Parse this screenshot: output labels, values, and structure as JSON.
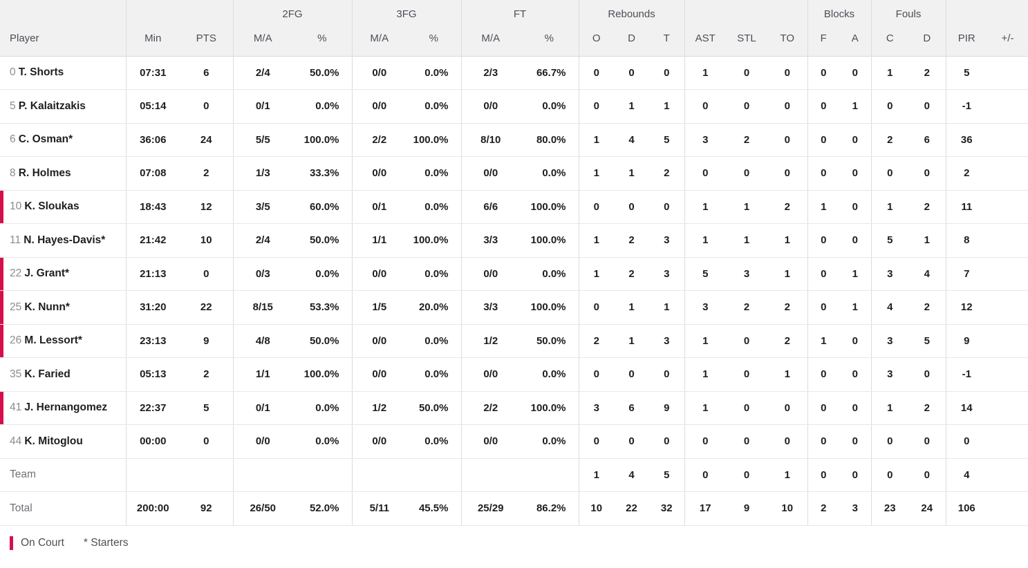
{
  "colors": {
    "on_court": "#d50f4b",
    "header_bg": "#f1f1f2"
  },
  "table": {
    "groups": {
      "fg2": "2FG",
      "fg3": "3FG",
      "ft": "FT",
      "rebounds": "Rebounds",
      "blocks": "Blocks",
      "fouls": "Fouls"
    },
    "columns": {
      "player": "Player",
      "min": "Min",
      "pts": "PTS",
      "ma": "M/A",
      "pct": "%",
      "reb_o": "O",
      "reb_d": "D",
      "reb_t": "T",
      "ast": "AST",
      "stl": "STL",
      "to": "TO",
      "blk_f": "F",
      "blk_a": "A",
      "foul_c": "C",
      "foul_d": "D",
      "pir": "PIR",
      "plus_minus": "+/-"
    },
    "rows": [
      {
        "type": "player",
        "num": "0",
        "name": "T. Shorts",
        "on_court": false,
        "min": "07:31",
        "pts": "6",
        "fg2_ma": "2/4",
        "fg2_pct": "50.0%",
        "fg3_ma": "0/0",
        "fg3_pct": "0.0%",
        "ft_ma": "2/3",
        "ft_pct": "66.7%",
        "reb_o": "0",
        "reb_d": "0",
        "reb_t": "0",
        "ast": "1",
        "stl": "0",
        "to": "0",
        "blk_f": "0",
        "blk_a": "0",
        "foul_c": "1",
        "foul_d": "2",
        "pir": "5",
        "plus_minus": ""
      },
      {
        "type": "player",
        "num": "5",
        "name": "P. Kalaitzakis",
        "on_court": false,
        "min": "05:14",
        "pts": "0",
        "fg2_ma": "0/1",
        "fg2_pct": "0.0%",
        "fg3_ma": "0/0",
        "fg3_pct": "0.0%",
        "ft_ma": "0/0",
        "ft_pct": "0.0%",
        "reb_o": "0",
        "reb_d": "1",
        "reb_t": "1",
        "ast": "0",
        "stl": "0",
        "to": "0",
        "blk_f": "0",
        "blk_a": "1",
        "foul_c": "0",
        "foul_d": "0",
        "pir": "-1",
        "plus_minus": ""
      },
      {
        "type": "player",
        "num": "6",
        "name": "C. Osman*",
        "on_court": false,
        "min": "36:06",
        "pts": "24",
        "fg2_ma": "5/5",
        "fg2_pct": "100.0%",
        "fg3_ma": "2/2",
        "fg3_pct": "100.0%",
        "ft_ma": "8/10",
        "ft_pct": "80.0%",
        "reb_o": "1",
        "reb_d": "4",
        "reb_t": "5",
        "ast": "3",
        "stl": "2",
        "to": "0",
        "blk_f": "0",
        "blk_a": "0",
        "foul_c": "2",
        "foul_d": "6",
        "pir": "36",
        "plus_minus": ""
      },
      {
        "type": "player",
        "num": "8",
        "name": "R. Holmes",
        "on_court": false,
        "min": "07:08",
        "pts": "2",
        "fg2_ma": "1/3",
        "fg2_pct": "33.3%",
        "fg3_ma": "0/0",
        "fg3_pct": "0.0%",
        "ft_ma": "0/0",
        "ft_pct": "0.0%",
        "reb_o": "1",
        "reb_d": "1",
        "reb_t": "2",
        "ast": "0",
        "stl": "0",
        "to": "0",
        "blk_f": "0",
        "blk_a": "0",
        "foul_c": "0",
        "foul_d": "0",
        "pir": "2",
        "plus_minus": ""
      },
      {
        "type": "player",
        "num": "10",
        "name": "K. Sloukas",
        "on_court": true,
        "min": "18:43",
        "pts": "12",
        "fg2_ma": "3/5",
        "fg2_pct": "60.0%",
        "fg3_ma": "0/1",
        "fg3_pct": "0.0%",
        "ft_ma": "6/6",
        "ft_pct": "100.0%",
        "reb_o": "0",
        "reb_d": "0",
        "reb_t": "0",
        "ast": "1",
        "stl": "1",
        "to": "2",
        "blk_f": "1",
        "blk_a": "0",
        "foul_c": "1",
        "foul_d": "2",
        "pir": "11",
        "plus_minus": ""
      },
      {
        "type": "player",
        "num": "11",
        "name": "N. Hayes-Davis*",
        "on_court": false,
        "min": "21:42",
        "pts": "10",
        "fg2_ma": "2/4",
        "fg2_pct": "50.0%",
        "fg3_ma": "1/1",
        "fg3_pct": "100.0%",
        "ft_ma": "3/3",
        "ft_pct": "100.0%",
        "reb_o": "1",
        "reb_d": "2",
        "reb_t": "3",
        "ast": "1",
        "stl": "1",
        "to": "1",
        "blk_f": "0",
        "blk_a": "0",
        "foul_c": "5",
        "foul_d": "1",
        "pir": "8",
        "plus_minus": ""
      },
      {
        "type": "player",
        "num": "22",
        "name": "J. Grant*",
        "on_court": true,
        "min": "21:13",
        "pts": "0",
        "fg2_ma": "0/3",
        "fg2_pct": "0.0%",
        "fg3_ma": "0/0",
        "fg3_pct": "0.0%",
        "ft_ma": "0/0",
        "ft_pct": "0.0%",
        "reb_o": "1",
        "reb_d": "2",
        "reb_t": "3",
        "ast": "5",
        "stl": "3",
        "to": "1",
        "blk_f": "0",
        "blk_a": "1",
        "foul_c": "3",
        "foul_d": "4",
        "pir": "7",
        "plus_minus": ""
      },
      {
        "type": "player",
        "num": "25",
        "name": "K. Nunn*",
        "on_court": true,
        "min": "31:20",
        "pts": "22",
        "fg2_ma": "8/15",
        "fg2_pct": "53.3%",
        "fg3_ma": "1/5",
        "fg3_pct": "20.0%",
        "ft_ma": "3/3",
        "ft_pct": "100.0%",
        "reb_o": "0",
        "reb_d": "1",
        "reb_t": "1",
        "ast": "3",
        "stl": "2",
        "to": "2",
        "blk_f": "0",
        "blk_a": "1",
        "foul_c": "4",
        "foul_d": "2",
        "pir": "12",
        "plus_minus": ""
      },
      {
        "type": "player",
        "num": "26",
        "name": "M. Lessort*",
        "on_court": true,
        "min": "23:13",
        "pts": "9",
        "fg2_ma": "4/8",
        "fg2_pct": "50.0%",
        "fg3_ma": "0/0",
        "fg3_pct": "0.0%",
        "ft_ma": "1/2",
        "ft_pct": "50.0%",
        "reb_o": "2",
        "reb_d": "1",
        "reb_t": "3",
        "ast": "1",
        "stl": "0",
        "to": "2",
        "blk_f": "1",
        "blk_a": "0",
        "foul_c": "3",
        "foul_d": "5",
        "pir": "9",
        "plus_minus": ""
      },
      {
        "type": "player",
        "num": "35",
        "name": "K. Faried",
        "on_court": false,
        "min": "05:13",
        "pts": "2",
        "fg2_ma": "1/1",
        "fg2_pct": "100.0%",
        "fg3_ma": "0/0",
        "fg3_pct": "0.0%",
        "ft_ma": "0/0",
        "ft_pct": "0.0%",
        "reb_o": "0",
        "reb_d": "0",
        "reb_t": "0",
        "ast": "1",
        "stl": "0",
        "to": "1",
        "blk_f": "0",
        "blk_a": "0",
        "foul_c": "3",
        "foul_d": "0",
        "pir": "-1",
        "plus_minus": ""
      },
      {
        "type": "player",
        "num": "41",
        "name": "J. Hernangomez",
        "on_court": true,
        "min": "22:37",
        "pts": "5",
        "fg2_ma": "0/1",
        "fg2_pct": "0.0%",
        "fg3_ma": "1/2",
        "fg3_pct": "50.0%",
        "ft_ma": "2/2",
        "ft_pct": "100.0%",
        "reb_o": "3",
        "reb_d": "6",
        "reb_t": "9",
        "ast": "1",
        "stl": "0",
        "to": "0",
        "blk_f": "0",
        "blk_a": "0",
        "foul_c": "1",
        "foul_d": "2",
        "pir": "14",
        "plus_minus": ""
      },
      {
        "type": "player",
        "num": "44",
        "name": "K. Mitoglou",
        "on_court": false,
        "min": "00:00",
        "pts": "0",
        "fg2_ma": "0/0",
        "fg2_pct": "0.0%",
        "fg3_ma": "0/0",
        "fg3_pct": "0.0%",
        "ft_ma": "0/0",
        "ft_pct": "0.0%",
        "reb_o": "0",
        "reb_d": "0",
        "reb_t": "0",
        "ast": "0",
        "stl": "0",
        "to": "0",
        "blk_f": "0",
        "blk_a": "0",
        "foul_c": "0",
        "foul_d": "0",
        "pir": "0",
        "plus_minus": ""
      },
      {
        "type": "summary",
        "num": "",
        "name": "Team",
        "on_court": false,
        "min": "",
        "pts": "",
        "fg2_ma": "",
        "fg2_pct": "",
        "fg3_ma": "",
        "fg3_pct": "",
        "ft_ma": "",
        "ft_pct": "",
        "reb_o": "1",
        "reb_d": "4",
        "reb_t": "5",
        "ast": "0",
        "stl": "0",
        "to": "1",
        "blk_f": "0",
        "blk_a": "0",
        "foul_c": "0",
        "foul_d": "0",
        "pir": "4",
        "plus_minus": ""
      },
      {
        "type": "summary",
        "num": "",
        "name": "Total",
        "on_court": false,
        "min": "200:00",
        "pts": "92",
        "fg2_ma": "26/50",
        "fg2_pct": "52.0%",
        "fg3_ma": "5/11",
        "fg3_pct": "45.5%",
        "ft_ma": "25/29",
        "ft_pct": "86.2%",
        "reb_o": "10",
        "reb_d": "22",
        "reb_t": "32",
        "ast": "17",
        "stl": "9",
        "to": "10",
        "blk_f": "2",
        "blk_a": "3",
        "foul_c": "23",
        "foul_d": "24",
        "pir": "106",
        "plus_minus": ""
      }
    ]
  },
  "legend": {
    "on_court": "On Court",
    "starters": "* Starters"
  }
}
